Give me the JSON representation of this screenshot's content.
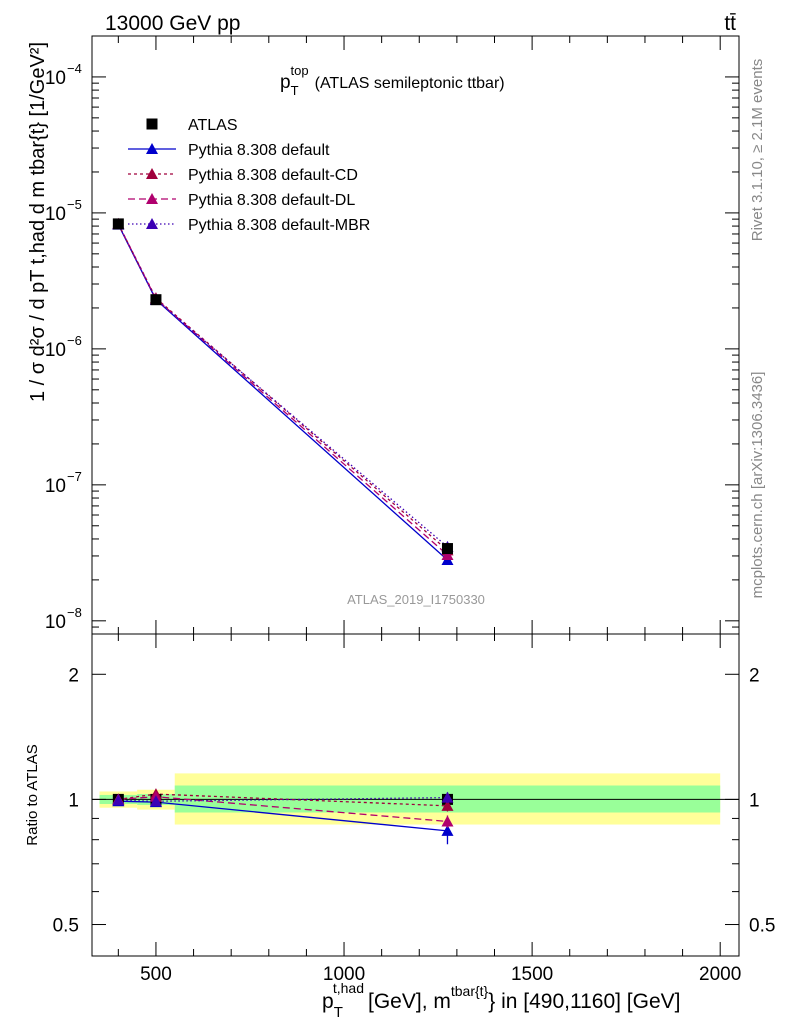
{
  "header": {
    "left": "13000 GeV pp",
    "right": "tt̄"
  },
  "side_labels": {
    "upper": "Rivet 3.1.10, ≥ 2.1M events",
    "lower": "mcplots.cern.ch [arXiv:1306.3436]"
  },
  "watermark": "ATLAS_2019_I1750330",
  "colors": {
    "data": "#000000",
    "default": "#0000cc",
    "default_cd": "#a0003c",
    "default_dl": "#b0006e",
    "default_mbr": "#3c00b4",
    "band_inner": "#99ff99",
    "band_outer": "#ffff99"
  },
  "chart_data": [
    {
      "type": "line",
      "title_main": "p",
      "title_sub": "T",
      "title_sup": "top",
      "title_rest": "(ATLAS semileptonic ttbar)",
      "ylabel": "1 / σ d²σ / d pT t,had d m tbar{t} [1/GeV²]",
      "yscale": "log",
      "ylim": [
        8e-09,
        0.0002
      ],
      "xlim": [
        330,
        2050
      ],
      "ytick_labels": [
        "10",
        "10",
        "10",
        "10",
        "10"
      ],
      "ytick_exponents": [
        "−8",
        "−7",
        "−6",
        "−5",
        "−4"
      ],
      "ytick_values": [
        1e-08,
        1e-07,
        1e-06,
        1e-05,
        0.0001
      ],
      "legend_position": "top-left",
      "x": [
        400,
        500,
        1275
      ],
      "series": [
        {
          "name": "ATLAS",
          "style": "data",
          "values": [
            8.3e-06,
            2.3e-06,
            3.4e-08
          ]
        },
        {
          "name": "Pythia 8.308 default",
          "style": "default",
          "values": [
            8.2e-06,
            2.3e-06,
            2.8e-08
          ]
        },
        {
          "name": "Pythia 8.308 default-CD",
          "style": "default_cd",
          "values": [
            8.3e-06,
            2.36e-06,
            3.3e-08
          ]
        },
        {
          "name": "Pythia 8.308 default-DL",
          "style": "default_dl",
          "values": [
            8.3e-06,
            2.33e-06,
            3.05e-08
          ]
        },
        {
          "name": "Pythia 8.308 default-MBR",
          "style": "default_mbr",
          "values": [
            8.25e-06,
            2.3e-06,
            3.5e-08
          ]
        }
      ]
    },
    {
      "type": "line",
      "ylabel": "Ratio to ATLAS",
      "yscale": "log",
      "ylim": [
        0.42,
        2.5
      ],
      "xlim": [
        330,
        2050
      ],
      "ytick_labels": [
        "0.5",
        "1",
        "2"
      ],
      "ytick_values": [
        0.5,
        1,
        2
      ],
      "xtick_labels": [
        "500",
        "1000",
        "1500",
        "2000"
      ],
      "xtick_values": [
        500,
        1000,
        1500,
        2000
      ],
      "xlabel_main": "p",
      "xlabel_sub": "T",
      "xlabel_sup": "t,had",
      "xlabel_mid": "[GeV], m",
      "xlabel_sup2": "tbar{t}",
      "xlabel_rest": "} in [490,1160] [GeV]",
      "bands": [
        {
          "x0": 350,
          "x1": 450,
          "inner": [
            0.975,
            1.025
          ],
          "outer": [
            0.955,
            1.045
          ]
        },
        {
          "x0": 450,
          "x1": 550,
          "inner": [
            0.97,
            1.03
          ],
          "outer": [
            0.945,
            1.055
          ]
        },
        {
          "x0": 550,
          "x1": 2000,
          "inner": [
            0.93,
            1.08
          ],
          "outer": [
            0.87,
            1.155
          ]
        }
      ],
      "x": [
        400,
        500,
        1275
      ],
      "series": [
        {
          "name": "Pythia 8.308 default",
          "style": "default",
          "values": [
            0.99,
            0.985,
            0.84
          ],
          "err": [
            0.01,
            0.01,
            0.06
          ]
        },
        {
          "name": "Pythia 8.308 default-CD",
          "style": "default_cd",
          "values": [
            1.0,
            1.03,
            0.965
          ],
          "err": [
            0.01,
            0.012,
            0.03
          ]
        },
        {
          "name": "Pythia 8.308 default-DL",
          "style": "default_dl",
          "values": [
            1.0,
            1.015,
            0.885
          ],
          "err": [
            0.01,
            0.012,
            0.03
          ]
        },
        {
          "name": "Pythia 8.308 default-MBR",
          "style": "default_mbr",
          "values": [
            0.995,
            0.99,
            1.01
          ],
          "err": [
            0.01,
            0.01,
            0.03
          ]
        }
      ]
    }
  ]
}
